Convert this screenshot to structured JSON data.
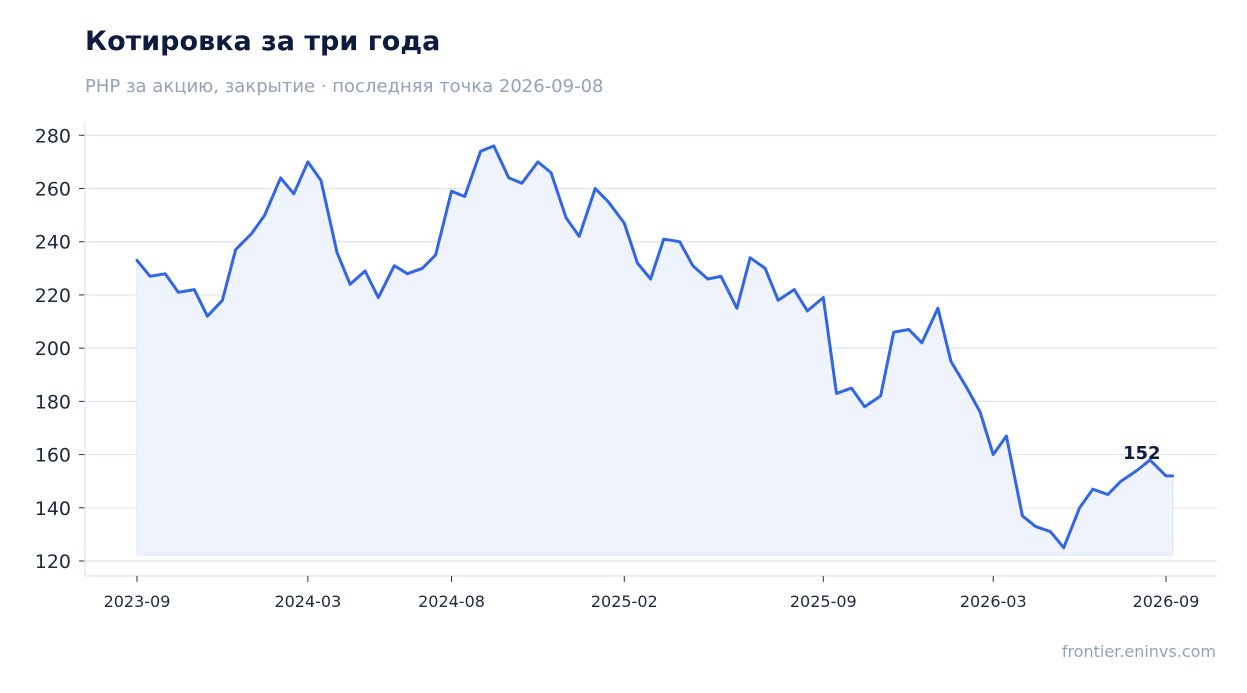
{
  "header": {
    "title": "Котировка за три года",
    "subtitle": "PHP за акцию, закрытие · последняя точка 2026-09-08"
  },
  "footer": {
    "source": "frontier.eninvs.com"
  },
  "colors": {
    "line": "#3366e6",
    "fill": "#eef3fd",
    "grid": "#dde3f0",
    "axis": "#dde3f0"
  },
  "chart_data": {
    "type": "line",
    "title": "Котировка за три года",
    "subtitle": "PHP за акцию, закрытие · последняя точка 2026-09-08",
    "xlabel": "",
    "ylabel": "",
    "ylim": [
      120,
      285
    ],
    "yticks": [
      120,
      140,
      160,
      180,
      200,
      220,
      240,
      260,
      280
    ],
    "xticks": [
      "2023-09",
      "2024-03",
      "2024-08",
      "2025-02",
      "2025-09",
      "2026-03",
      "2026-09"
    ],
    "grid": true,
    "last_value_label": "152",
    "series": [
      {
        "x": [
          "2023-09-01",
          "2023-09-15",
          "2023-10-01",
          "2023-10-15",
          "2023-11-01",
          "2023-11-15",
          "2023-12-01",
          "2023-12-15",
          "2024-01-01",
          "2024-01-15",
          "2024-02-01",
          "2024-02-15",
          "2024-03-01",
          "2024-03-15",
          "2024-04-01",
          "2024-04-15",
          "2024-05-01",
          "2024-05-15",
          "2024-06-01",
          "2024-06-15",
          "2024-07-01",
          "2024-07-15",
          "2024-08-01",
          "2024-08-15",
          "2024-09-01",
          "2024-09-15",
          "2024-10-01",
          "2024-10-15",
          "2024-11-01",
          "2024-11-15",
          "2024-12-01",
          "2024-12-15",
          "2025-01-01",
          "2025-01-15",
          "2025-02-01",
          "2025-02-15",
          "2025-03-01",
          "2025-03-15",
          "2025-04-01",
          "2025-04-15",
          "2025-05-01",
          "2025-05-15",
          "2025-06-01",
          "2025-06-15",
          "2025-07-01",
          "2025-07-15",
          "2025-08-01",
          "2025-08-15",
          "2025-09-01",
          "2025-09-15",
          "2025-10-01",
          "2025-10-15",
          "2025-11-01",
          "2025-11-15",
          "2025-12-01",
          "2025-12-15",
          "2026-01-01",
          "2026-01-15",
          "2026-02-01",
          "2026-02-15",
          "2026-03-01",
          "2026-03-15",
          "2026-04-01",
          "2026-04-15",
          "2026-05-01",
          "2026-05-15",
          "2026-06-01",
          "2026-06-15",
          "2026-07-01",
          "2026-07-15",
          "2026-08-01",
          "2026-08-15",
          "2026-09-01",
          "2026-09-08"
        ],
        "values": [
          233,
          227,
          228,
          221,
          222,
          212,
          218,
          237,
          243,
          250,
          264,
          258,
          270,
          263,
          236,
          224,
          229,
          219,
          231,
          228,
          230,
          235,
          259,
          257,
          274,
          276,
          264,
          262,
          270,
          266,
          249,
          242,
          260,
          255,
          247,
          232,
          226,
          241,
          240,
          231,
          226,
          227,
          215,
          234,
          230,
          218,
          222,
          214,
          219,
          183,
          185,
          178,
          182,
          206,
          207,
          202,
          215,
          195,
          185,
          176,
          160,
          167,
          137,
          133,
          131,
          125,
          140,
          147,
          145,
          150,
          154,
          158,
          152,
          152
        ]
      }
    ]
  }
}
